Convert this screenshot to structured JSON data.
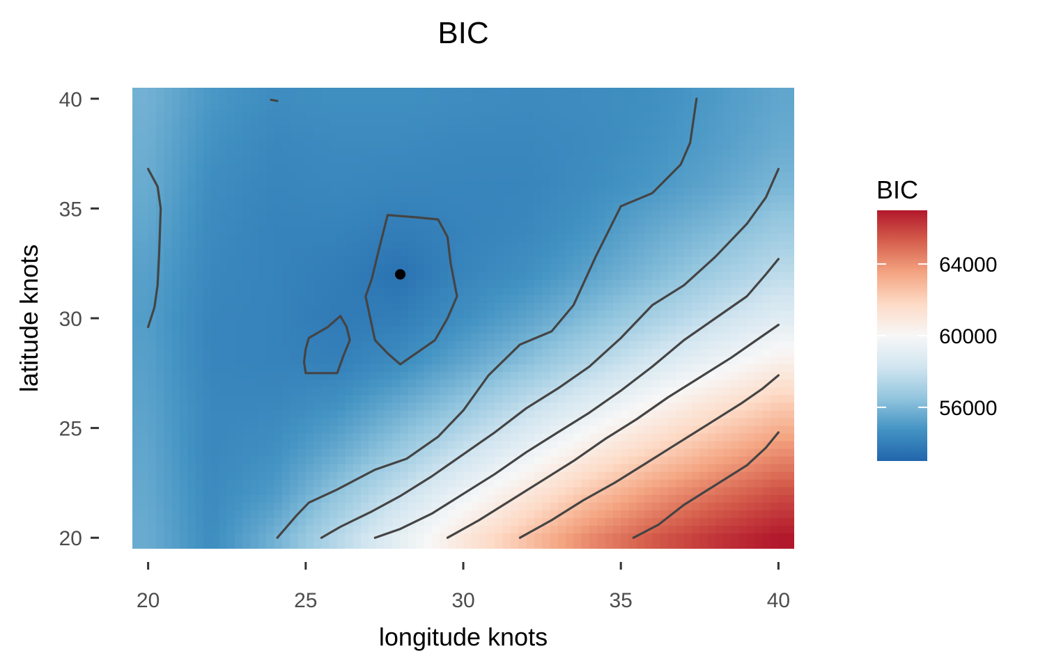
{
  "chart_data": {
    "type": "heatmap",
    "title": "BIC",
    "xlabel": "longitude knots",
    "ylabel": "latitude knots",
    "xlim": [
      19.5,
      40.5
    ],
    "ylim": [
      19.5,
      40.5
    ],
    "x_ticks": [
      20,
      25,
      30,
      35,
      40
    ],
    "y_ticks": [
      20,
      25,
      30,
      35,
      40
    ],
    "grid": false,
    "legend": {
      "title": "BIC",
      "placement": "right",
      "range": [
        53000,
        67000
      ],
      "ticks": [
        56000,
        60000,
        64000
      ],
      "colors": [
        "#2166ac",
        "#4393c3",
        "#92c5de",
        "#d1e5f0",
        "#f7f7f7",
        "#fddbc7",
        "#f4a582",
        "#d6604d",
        "#b2182b"
      ]
    },
    "minimum_point": {
      "x": 28,
      "y": 32
    },
    "surface_samples": {
      "x": [
        20,
        22,
        24,
        26,
        28,
        30,
        32,
        34,
        36,
        38,
        40
      ],
      "y": [
        20,
        22,
        24,
        26,
        28,
        30,
        32,
        34,
        36,
        38,
        40
      ],
      "z": [
        [
          55600,
          54500,
          55800,
          57500,
          59200,
          61000,
          62600,
          64200,
          65400,
          66300,
          67000
        ],
        [
          55500,
          54400,
          55000,
          56500,
          58000,
          59500,
          61000,
          62500,
          63800,
          64800,
          65700
        ],
        [
          55400,
          54300,
          54600,
          55500,
          56700,
          58000,
          59300,
          60700,
          61900,
          63000,
          64000
        ],
        [
          55300,
          54300,
          54300,
          54700,
          55600,
          56600,
          57800,
          59000,
          60200,
          61300,
          62300
        ],
        [
          55200,
          54200,
          54100,
          54000,
          54500,
          55400,
          56300,
          57400,
          58500,
          59500,
          60500
        ],
        [
          55100,
          54200,
          54100,
          53800,
          53900,
          54600,
          55300,
          56200,
          57100,
          58000,
          58900
        ],
        [
          55200,
          54300,
          54100,
          53900,
          53500,
          54200,
          54600,
          55300,
          56100,
          56900,
          57700
        ],
        [
          55400,
          54400,
          54100,
          54100,
          53900,
          54100,
          54300,
          54800,
          55500,
          56100,
          56800
        ],
        [
          55600,
          54500,
          54200,
          54300,
          54200,
          54200,
          54200,
          54500,
          54900,
          55400,
          56000
        ],
        [
          55700,
          54700,
          54300,
          54400,
          54400,
          54300,
          54300,
          54400,
          54700,
          55100,
          55600
        ],
        [
          55800,
          54900,
          54500,
          54600,
          54600,
          54500,
          54400,
          54500,
          54600,
          55000,
          55400
        ]
      ]
    },
    "contour_lines_data_coords": [
      [
        [
          20,
          36.8
        ],
        [
          20.3,
          36
        ],
        [
          20.4,
          35
        ],
        [
          20.35,
          33
        ],
        [
          20.3,
          31.5
        ],
        [
          20.2,
          30.5
        ],
        [
          20,
          29.6
        ]
      ],
      [
        [
          23.9,
          39.95
        ],
        [
          24.1,
          39.9
        ]
      ],
      [
        [
          25.1,
          29.1
        ],
        [
          25.7,
          29.6
        ],
        [
          26.1,
          30.1
        ],
        [
          26.3,
          29.6
        ],
        [
          26.4,
          29
        ],
        [
          26.2,
          28.3
        ],
        [
          26,
          27.5
        ],
        [
          25.5,
          27.5
        ],
        [
          25,
          27.5
        ],
        [
          24.95,
          28
        ],
        [
          25,
          28.6
        ],
        [
          25.1,
          29.1
        ]
      ],
      [
        [
          27.6,
          34.7
        ],
        [
          28.5,
          34.6
        ],
        [
          29.2,
          34.5
        ],
        [
          29.5,
          33.7
        ],
        [
          29.6,
          32.5
        ],
        [
          29.8,
          31
        ],
        [
          29.5,
          30
        ],
        [
          29.1,
          29
        ],
        [
          28.5,
          28.4
        ],
        [
          28,
          27.9
        ],
        [
          27.6,
          28.4
        ],
        [
          27.2,
          29
        ],
        [
          27.05,
          30
        ],
        [
          26.9,
          31
        ],
        [
          27.1,
          31.8
        ],
        [
          27.3,
          33
        ],
        [
          27.6,
          34.7
        ]
      ],
      [
        [
          24.1,
          20
        ],
        [
          24.7,
          21
        ],
        [
          25.1,
          21.6
        ],
        [
          26,
          22.2
        ],
        [
          27.2,
          23.1
        ],
        [
          28.2,
          23.6
        ],
        [
          29.2,
          24.6
        ],
        [
          30,
          25.8
        ],
        [
          30.8,
          27.4
        ],
        [
          31.8,
          28.8
        ],
        [
          32.8,
          29.4
        ],
        [
          33.5,
          30.6
        ],
        [
          34.2,
          32.8
        ],
        [
          35,
          35.1
        ],
        [
          36,
          35.7
        ],
        [
          36.9,
          37
        ],
        [
          37.2,
          38
        ],
        [
          37.4,
          40
        ]
      ],
      [
        [
          25.5,
          20
        ],
        [
          26.1,
          20.5
        ],
        [
          27.1,
          21.2
        ],
        [
          28,
          21.9
        ],
        [
          29,
          22.8
        ],
        [
          30,
          23.8
        ],
        [
          31,
          24.8
        ],
        [
          32,
          25.9
        ],
        [
          33,
          26.8
        ],
        [
          34,
          27.8
        ],
        [
          35,
          29.1
        ],
        [
          36,
          30.6
        ],
        [
          37,
          31.5
        ],
        [
          38,
          32.8
        ],
        [
          39,
          34.3
        ],
        [
          39.6,
          35.5
        ],
        [
          40,
          36.8
        ]
      ],
      [
        [
          27.2,
          20
        ],
        [
          28,
          20.4
        ],
        [
          29,
          21.1
        ],
        [
          30,
          22
        ],
        [
          31,
          22.9
        ],
        [
          32,
          23.9
        ],
        [
          33,
          24.8
        ],
        [
          34,
          25.7
        ],
        [
          35,
          26.7
        ],
        [
          36,
          27.8
        ],
        [
          37,
          29
        ],
        [
          38,
          30
        ],
        [
          39,
          31
        ],
        [
          39.6,
          32
        ],
        [
          40,
          32.7
        ]
      ],
      [
        [
          29.5,
          20
        ],
        [
          30.5,
          20.8
        ],
        [
          31.5,
          21.7
        ],
        [
          32.5,
          22.6
        ],
        [
          33.5,
          23.5
        ],
        [
          34.5,
          24.5
        ],
        [
          35.5,
          25.4
        ],
        [
          36.5,
          26.4
        ],
        [
          37.5,
          27.3
        ],
        [
          38.5,
          28.2
        ],
        [
          39.3,
          29
        ],
        [
          40,
          29.7
        ]
      ],
      [
        [
          31.8,
          20
        ],
        [
          32.8,
          20.8
        ],
        [
          33.8,
          21.7
        ],
        [
          34.8,
          22.5
        ],
        [
          35.8,
          23.4
        ],
        [
          36.8,
          24.3
        ],
        [
          37.8,
          25.2
        ],
        [
          38.8,
          26.1
        ],
        [
          39.5,
          26.8
        ],
        [
          40,
          27.4
        ]
      ],
      [
        [
          35.4,
          20
        ],
        [
          36.2,
          20.6
        ],
        [
          37,
          21.5
        ],
        [
          38,
          22.4
        ],
        [
          39,
          23.3
        ],
        [
          39.6,
          24.1
        ],
        [
          40,
          24.8
        ]
      ]
    ]
  }
}
